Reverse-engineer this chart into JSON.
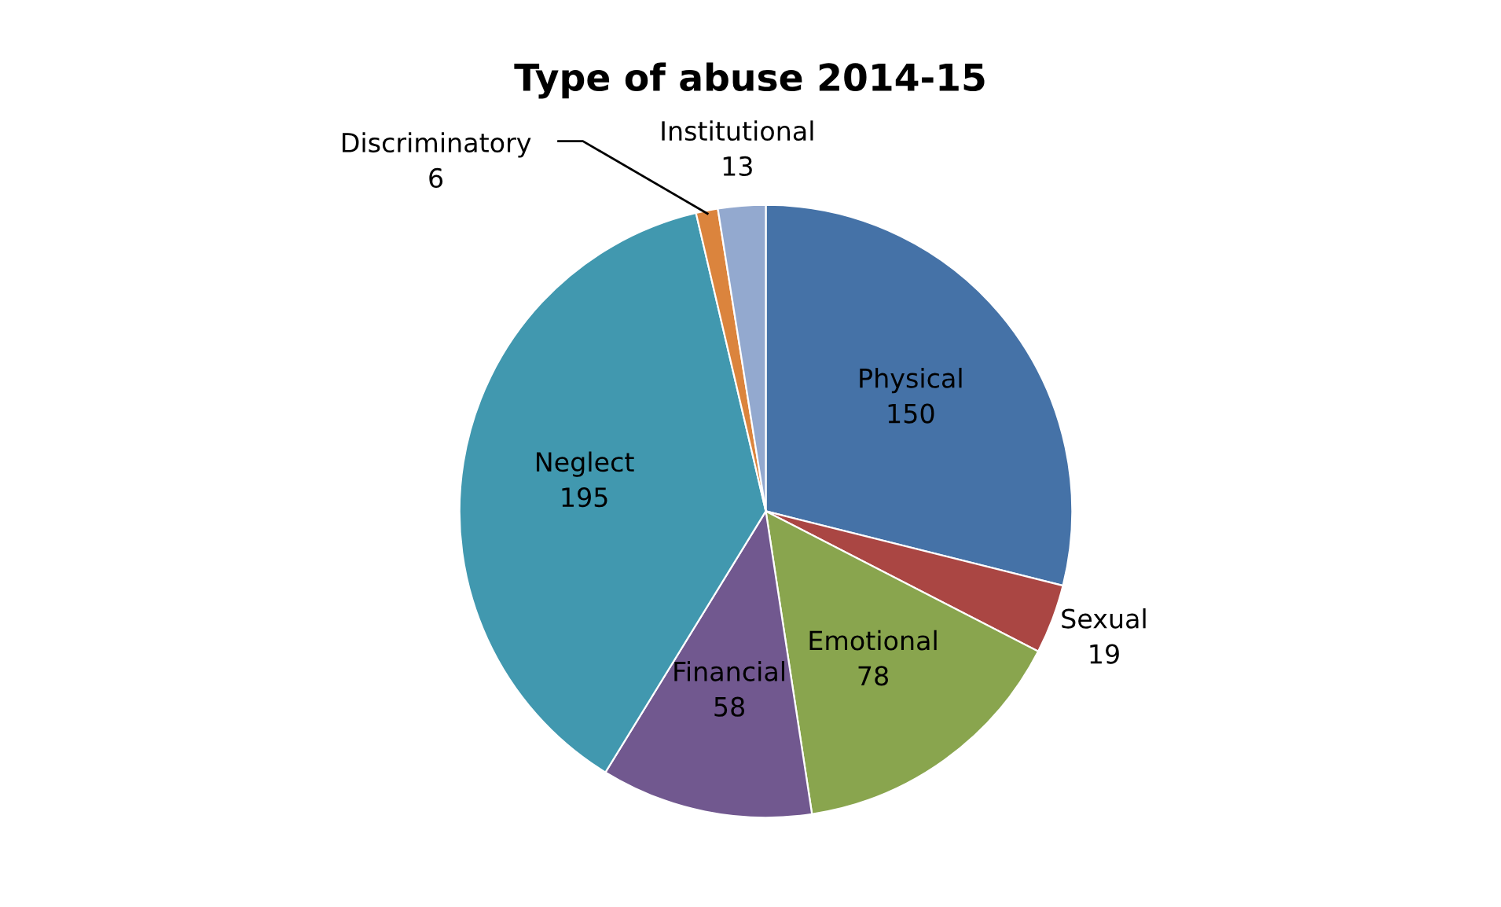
{
  "chart_data": {
    "type": "pie",
    "title": "Type of abuse 2014-15",
    "categories": [
      "Physical",
      "Sexual",
      "Emotional",
      "Financial",
      "Neglect",
      "Discriminatory",
      "Institutional"
    ],
    "values": [
      150,
      19,
      78,
      58,
      195,
      6,
      13
    ],
    "colors": [
      "#4572a7",
      "#aa4643",
      "#89a54e",
      "#71588f",
      "#4198af",
      "#db843d",
      "#93a9cf"
    ],
    "data_labels": true,
    "legend": false
  }
}
